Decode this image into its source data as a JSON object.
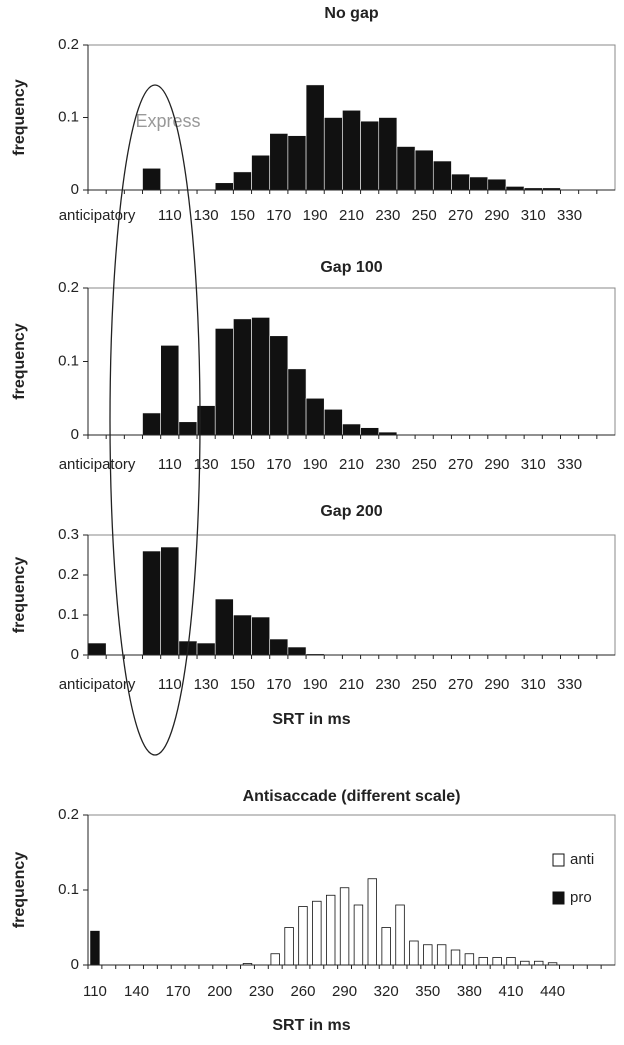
{
  "chart_data": [
    {
      "type": "bar",
      "title": "No gap",
      "y_label": "frequency",
      "annotation": "Express",
      "color": "#111111",
      "categories": [
        "anticipatory",
        null,
        null,
        null,
        "110",
        null,
        "130",
        null,
        "150",
        null,
        "170",
        null,
        "190",
        null,
        "210",
        null,
        "230",
        null,
        "250",
        null,
        "270",
        null,
        "290",
        null,
        "310",
        null,
        "330",
        null,
        null
      ],
      "values": [
        0,
        0,
        0,
        0.03,
        0,
        0,
        0,
        0.01,
        0.025,
        0.048,
        0.078,
        0.075,
        0.145,
        0.1,
        0.11,
        0.095,
        0.1,
        0.06,
        0.055,
        0.04,
        0.022,
        0.018,
        0.015,
        0.005,
        0.003,
        0.003,
        0,
        0,
        0
      ],
      "ylim": [
        0,
        0.2
      ],
      "yticks": [
        0,
        0.1,
        0.2
      ]
    },
    {
      "type": "bar",
      "title": "Gap 100",
      "y_label": "frequency",
      "color": "#111111",
      "categories": [
        "anticipatory",
        null,
        null,
        null,
        "110",
        null,
        "130",
        null,
        "150",
        null,
        "170",
        null,
        "190",
        null,
        "210",
        null,
        "230",
        null,
        "250",
        null,
        "270",
        null,
        "290",
        null,
        "310",
        null,
        "330",
        null,
        null
      ],
      "values": [
        0,
        0,
        0,
        0.03,
        0.122,
        0.018,
        0.04,
        0.145,
        0.158,
        0.16,
        0.135,
        0.09,
        0.05,
        0.035,
        0.015,
        0.01,
        0.004,
        0,
        0,
        0,
        0,
        0,
        0,
        0,
        0,
        0,
        0,
        0,
        0
      ],
      "ylim": [
        0,
        0.2
      ],
      "yticks": [
        0,
        0.1,
        0.2
      ]
    },
    {
      "type": "bar",
      "title": "Gap 200",
      "y_label": "frequency",
      "x_label": "SRT in ms",
      "color": "#111111",
      "categories": [
        "anticipatory",
        null,
        null,
        null,
        "110",
        null,
        "130",
        null,
        "150",
        null,
        "170",
        null,
        "190",
        null,
        "210",
        null,
        "230",
        null,
        "250",
        null,
        "270",
        null,
        "290",
        null,
        "310",
        null,
        "330",
        null,
        null
      ],
      "values": [
        0.03,
        0,
        0,
        0.26,
        0.27,
        0.035,
        0.03,
        0.14,
        0.1,
        0.095,
        0.04,
        0.02,
        0.003,
        0,
        0,
        0,
        0,
        0,
        0,
        0,
        0,
        0,
        0,
        0,
        0,
        0,
        0,
        0,
        0
      ],
      "ylim": [
        0,
        0.3
      ],
      "yticks": [
        0,
        0.1,
        0.2,
        0.3
      ]
    },
    {
      "type": "bar",
      "title": "Antisaccade (different scale)",
      "y_label": "frequency",
      "x_label": "SRT in ms",
      "legend": "right",
      "categories": [
        "110",
        null,
        null,
        "140",
        null,
        null,
        "170",
        null,
        null,
        "200",
        null,
        null,
        "230",
        null,
        null,
        "260",
        null,
        null,
        "290",
        null,
        null,
        "320",
        null,
        null,
        "350",
        null,
        null,
        "380",
        null,
        null,
        "410",
        null,
        null,
        "440",
        null,
        null,
        null,
        null
      ],
      "series": [
        {
          "name": "anti",
          "color": "#ffffff",
          "values": [
            0,
            0,
            0,
            0,
            0,
            0,
            0,
            0,
            0,
            0,
            0,
            0.002,
            0,
            0.015,
            0.05,
            0.078,
            0.085,
            0.093,
            0.103,
            0.08,
            0.115,
            0.05,
            0.08,
            0.032,
            0.027,
            0.027,
            0.02,
            0.015,
            0.01,
            0.01,
            0.01,
            0.005,
            0.005,
            0.003,
            0,
            0,
            0,
            0
          ]
        },
        {
          "name": "pro",
          "color": "#111111",
          "values": [
            0.045,
            0,
            0,
            0,
            0,
            0,
            0,
            0,
            0,
            0,
            0,
            0,
            0,
            0,
            0,
            0,
            0,
            0,
            0,
            0,
            0,
            0,
            0,
            0,
            0,
            0,
            0,
            0,
            0,
            0,
            0,
            0,
            0,
            0,
            0,
            0,
            0,
            0
          ]
        }
      ],
      "ylim": [
        0,
        0.2
      ],
      "yticks": [
        0,
        0.1,
        0.2
      ]
    }
  ]
}
